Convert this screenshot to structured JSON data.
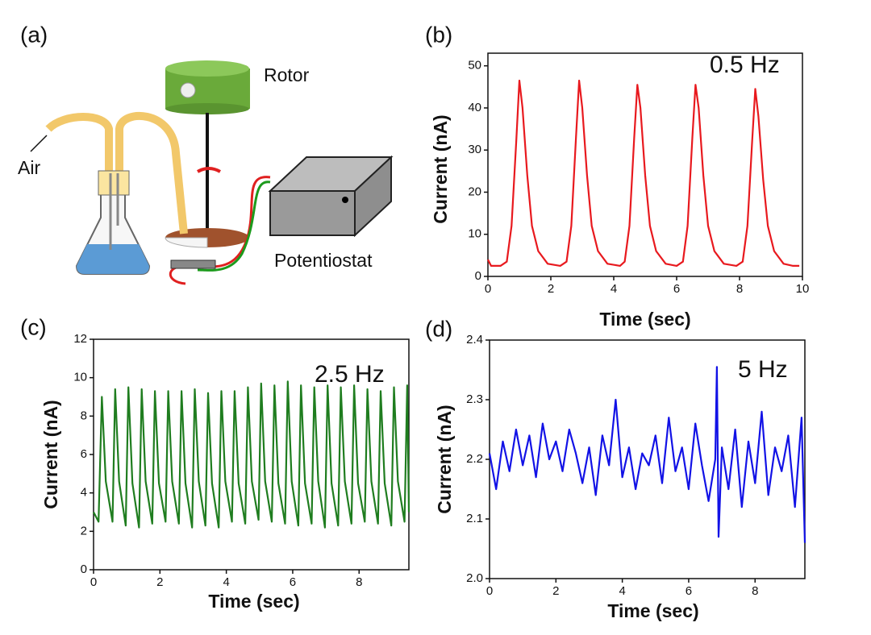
{
  "diagram": {
    "label": "(a)",
    "rotor": "Rotor",
    "air": "Air",
    "potentiostat": "Potentiostat"
  },
  "chart_data": [
    {
      "type": "line",
      "label": "(b)",
      "annotation": "0.5 Hz",
      "xlabel": "Time (sec)",
      "ylabel": "Current (nA)",
      "color": "#e8191e",
      "x": [
        0,
        0.1,
        0.4,
        0.6,
        0.75,
        0.9,
        1.0,
        1.1,
        1.25,
        1.4,
        1.6,
        1.9,
        2.3,
        2.5,
        2.65,
        2.8,
        2.9,
        3.0,
        3.15,
        3.3,
        3.5,
        3.8,
        4.2,
        4.35,
        4.5,
        4.65,
        4.75,
        4.85,
        5.0,
        5.15,
        5.35,
        5.65,
        6.0,
        6.2,
        6.35,
        6.5,
        6.6,
        6.7,
        6.85,
        7.0,
        7.2,
        7.5,
        7.9,
        8.1,
        8.25,
        8.4,
        8.5,
        8.6,
        8.75,
        8.9,
        9.1,
        9.4,
        9.7,
        9.9
      ],
      "values": [
        4,
        2.5,
        2.5,
        3.5,
        12,
        32,
        46.5,
        40,
        24,
        12,
        6,
        3,
        2.5,
        3.5,
        12,
        33,
        46.5,
        40,
        24,
        12,
        6,
        3,
        2.5,
        3.5,
        12,
        33,
        45.5,
        40,
        24,
        12,
        6,
        3,
        2.5,
        3.5,
        12,
        33,
        45.5,
        40,
        24,
        12,
        6,
        3,
        2.5,
        3.5,
        12,
        32,
        44.5,
        38,
        23,
        12,
        6,
        3,
        2.5,
        2.5
      ],
      "xlim": [
        0,
        10
      ],
      "xticks": [
        0,
        2,
        4,
        6,
        8,
        10
      ],
      "ylim": [
        0,
        53
      ],
      "yticks": [
        0,
        10,
        20,
        30,
        40,
        50
      ]
    },
    {
      "type": "line",
      "label": "(c)",
      "annotation": "2.5 Hz",
      "xlabel": "Time (sec)",
      "ylabel": "Current (nA)",
      "color": "#1f7d1f",
      "x": [
        0,
        0.15,
        0.25,
        0.37,
        0.57,
        0.65,
        0.77,
        0.97,
        1.05,
        1.17,
        1.37,
        1.45,
        1.57,
        1.77,
        1.85,
        1.97,
        2.17,
        2.25,
        2.37,
        2.57,
        2.65,
        2.77,
        2.97,
        3.05,
        3.17,
        3.37,
        3.45,
        3.57,
        3.77,
        3.85,
        3.97,
        4.17,
        4.25,
        4.37,
        4.57,
        4.65,
        4.77,
        4.97,
        5.05,
        5.17,
        5.37,
        5.45,
        5.57,
        5.77,
        5.85,
        5.97,
        6.17,
        6.25,
        6.37,
        6.57,
        6.65,
        6.77,
        6.97,
        7.05,
        7.17,
        7.37,
        7.45,
        7.57,
        7.77,
        7.85,
        7.97,
        8.17,
        8.25,
        8.37,
        8.57,
        8.65,
        8.77,
        8.97,
        9.05,
        9.17,
        9.37,
        9.45,
        9.5
      ],
      "values": [
        3,
        2.5,
        9.0,
        4.6,
        2.5,
        9.4,
        4.6,
        2.3,
        9.5,
        4.5,
        2.2,
        9.4,
        4.6,
        2.4,
        9.3,
        4.5,
        2.5,
        9.3,
        4.6,
        2.4,
        9.3,
        4.5,
        2.2,
        9.4,
        4.6,
        2.3,
        9.2,
        4.5,
        2.2,
        9.3,
        4.6,
        2.5,
        9.3,
        4.5,
        2.4,
        9.5,
        4.6,
        2.6,
        9.7,
        4.6,
        2.5,
        9.6,
        4.5,
        2.4,
        9.8,
        4.6,
        2.3,
        9.6,
        4.5,
        2.4,
        9.5,
        4.6,
        2.2,
        9.6,
        4.5,
        2.3,
        9.5,
        4.6,
        2.4,
        9.6,
        4.5,
        2.5,
        9.4,
        4.6,
        2.4,
        9.3,
        4.5,
        2.3,
        9.5,
        4.6,
        2.5,
        9.6,
        3
      ],
      "xlim": [
        0,
        9.5
      ],
      "xticks": [
        0,
        2,
        4,
        6,
        8
      ],
      "ylim": [
        0,
        12
      ],
      "yticks": [
        0,
        2,
        4,
        6,
        8,
        10,
        12
      ]
    },
    {
      "type": "line",
      "label": "(d)",
      "annotation": "5 Hz",
      "xlabel": "Time (sec)",
      "ylabel": "Current (nA)",
      "color": "#1212e6",
      "x": [
        0,
        0.2,
        0.4,
        0.6,
        0.8,
        1.0,
        1.2,
        1.4,
        1.6,
        1.8,
        2.0,
        2.2,
        2.4,
        2.6,
        2.8,
        3.0,
        3.2,
        3.4,
        3.6,
        3.8,
        4.0,
        4.2,
        4.4,
        4.6,
        4.8,
        5.0,
        5.2,
        5.4,
        5.6,
        5.8,
        6.0,
        6.2,
        6.4,
        6.6,
        6.8,
        6.85,
        6.9,
        7.0,
        7.2,
        7.4,
        7.6,
        7.8,
        8.0,
        8.2,
        8.4,
        8.6,
        8.8,
        9.0,
        9.2,
        9.4,
        9.5
      ],
      "values": [
        2.21,
        2.15,
        2.23,
        2.18,
        2.25,
        2.19,
        2.24,
        2.17,
        2.26,
        2.2,
        2.23,
        2.18,
        2.25,
        2.21,
        2.16,
        2.22,
        2.14,
        2.24,
        2.19,
        2.3,
        2.17,
        2.22,
        2.15,
        2.21,
        2.19,
        2.24,
        2.16,
        2.27,
        2.18,
        2.22,
        2.15,
        2.26,
        2.19,
        2.13,
        2.2,
        2.355,
        2.07,
        2.22,
        2.15,
        2.25,
        2.12,
        2.23,
        2.16,
        2.28,
        2.14,
        2.22,
        2.18,
        2.24,
        2.12,
        2.27,
        2.06
      ],
      "xlim": [
        0,
        9.5
      ],
      "xticks": [
        0,
        2,
        4,
        6,
        8
      ],
      "ylim": [
        2.0,
        2.4
      ],
      "yticks": [
        {
          "value": 2.0,
          "label": "2.0"
        },
        2.1,
        2.2,
        2.3,
        2.4
      ]
    }
  ]
}
